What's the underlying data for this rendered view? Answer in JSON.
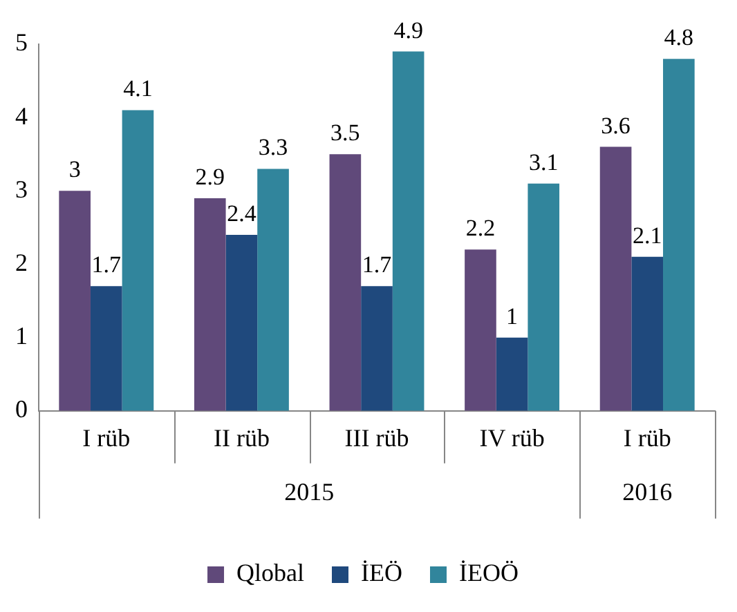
{
  "chart_data": {
    "type": "bar",
    "categories": [
      "I rüb",
      "II rüb",
      "III rüb",
      "IV rüb",
      "I rüb"
    ],
    "series": [
      {
        "name": "Qlobal",
        "color": "#60497a",
        "values": [
          3,
          2.9,
          3.5,
          2.2,
          3.6
        ]
      },
      {
        "name": "İEÖ",
        "color": "#1f497d",
        "values": [
          1.7,
          2.4,
          1.7,
          1,
          2.1
        ]
      },
      {
        "name": "İEOÖ",
        "color": "#31859c",
        "values": [
          4.1,
          3.3,
          4.9,
          3.1,
          4.8
        ]
      }
    ],
    "ylim": [
      0,
      5
    ],
    "yticks": [
      0,
      1,
      2,
      3,
      4,
      5
    ],
    "grid": false,
    "legend": "bottom",
    "data_labels": true,
    "annotations": [
      "2015",
      "2016"
    ]
  }
}
